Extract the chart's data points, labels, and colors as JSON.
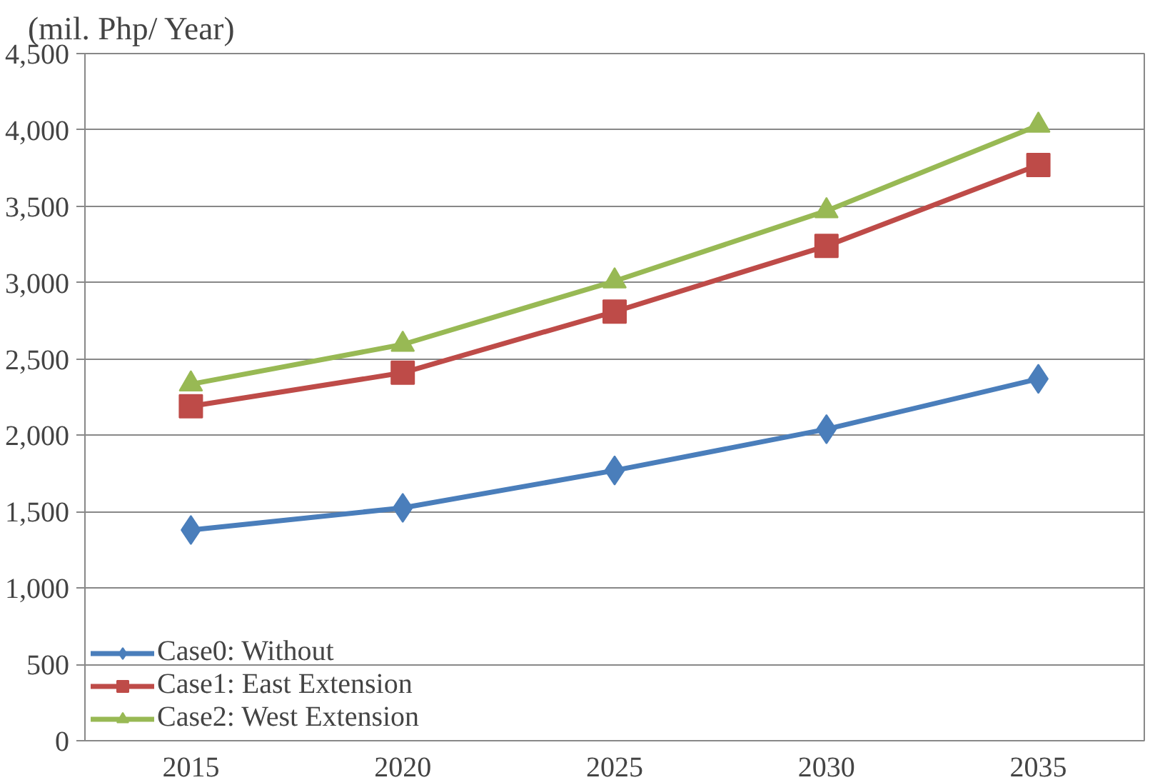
{
  "chart_data": {
    "type": "line",
    "ylabel": "(mil. Php/ Year)",
    "categories": [
      "2015",
      "2020",
      "2025",
      "2030",
      "2035"
    ],
    "series": [
      {
        "name": "Case0: Without",
        "color": "#4a7ebb",
        "marker": "diamond",
        "values": [
          1380,
          1525,
          1770,
          2040,
          2370
        ]
      },
      {
        "name": "Case1: East Extension",
        "color": "#be4b48",
        "marker": "square",
        "values": [
          2190,
          2410,
          2810,
          3240,
          3770
        ]
      },
      {
        "name": "Case2: West Extension",
        "color": "#98b954",
        "marker": "triangle",
        "values": [
          2335,
          2595,
          3010,
          3470,
          4030
        ]
      }
    ],
    "ylim": [
      0,
      4500
    ],
    "yticks": [
      {
        "value": 0,
        "label": "0"
      },
      {
        "value": 500,
        "label": "500"
      },
      {
        "value": 1000,
        "label": "1,000"
      },
      {
        "value": 1500,
        "label": "1,500"
      },
      {
        "value": 2000,
        "label": "2,000"
      },
      {
        "value": 2500,
        "label": "2,500"
      },
      {
        "value": 3000,
        "label": "3,000"
      },
      {
        "value": 3500,
        "label": "3,500"
      },
      {
        "value": 4000,
        "label": "4,000"
      },
      {
        "value": 4500,
        "label": "4,500"
      }
    ],
    "grid": "y",
    "legend": "bottom left",
    "line_style": "solid"
  }
}
